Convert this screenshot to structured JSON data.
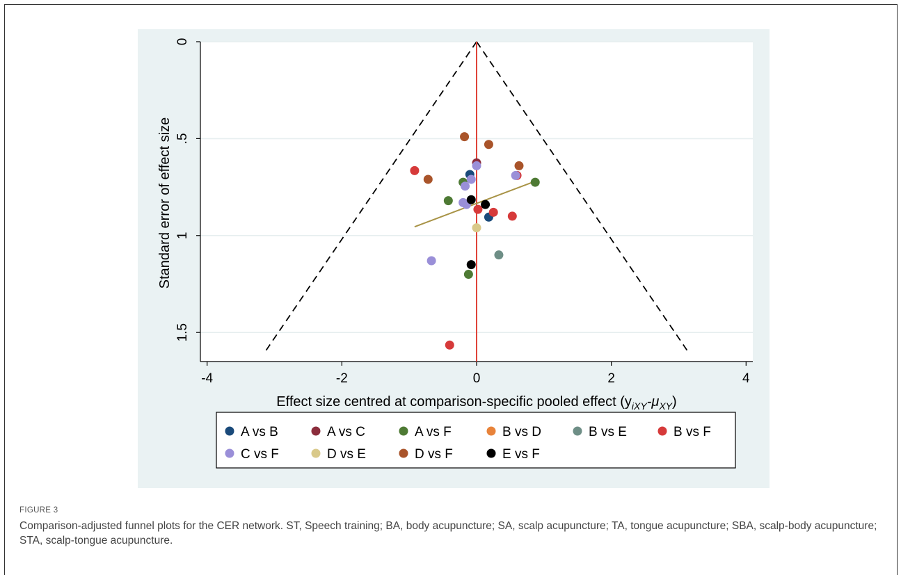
{
  "figure": {
    "label": "FIGURE 3",
    "caption": "Comparison-adjusted funnel plots for the CER network. ST, Speech training; BA, body acupuncture; SA, scalp acupuncture; TA, tongue acupuncture; SBA, scalp-body acupuncture; STA, scalp-tongue acupuncture."
  },
  "chart_data": {
    "type": "scatter",
    "title": "",
    "xlabel": "Effect size centred at comparison-specific pooled effect (y",
    "xlabel_sub1": "iXY",
    "xlabel_mid": "-μ",
    "xlabel_sub2": "XY",
    "xlabel_end": ")",
    "ylabel": "Standard error of effect size",
    "xlim": [
      -4.1,
      4.1
    ],
    "ylim": [
      0,
      1.65
    ],
    "y_reversed": true,
    "xticks": [
      -4,
      -2,
      0,
      2,
      4
    ],
    "xtick_labels": [
      "-4",
      "-2",
      "0",
      "2",
      "4"
    ],
    "yticks": [
      0,
      0.5,
      1,
      1.5
    ],
    "ytick_labels": [
      "0",
      ".5",
      "1",
      "1.5"
    ],
    "grid": true,
    "legend_position": "bottom",
    "funnel": {
      "apex": [
        0,
        0
      ],
      "left_base": [
        -3.14,
        1.6
      ],
      "right_base": [
        3.14,
        1.6
      ],
      "color": "#000000"
    },
    "null_line": {
      "x": 0,
      "color": "#e0443a"
    },
    "fit_line": {
      "x1": -0.92,
      "y1": 0.955,
      "x2": 0.87,
      "y2": 0.72,
      "color": "#a89346"
    },
    "series": [
      {
        "name": "A vs B",
        "color": "#1a4a7a",
        "points": [
          [
            -0.1,
            0.685
          ],
          [
            0.18,
            0.905
          ]
        ]
      },
      {
        "name": "A vs C",
        "color": "#8b2d3c",
        "points": [
          [
            0.0,
            0.625
          ]
        ]
      },
      {
        "name": "A vs F",
        "color": "#4e7a34",
        "points": [
          [
            -0.2,
            0.725
          ],
          [
            -0.42,
            0.82
          ],
          [
            0.87,
            0.725
          ],
          [
            -0.12,
            1.2
          ]
        ]
      },
      {
        "name": "B vs D",
        "color": "#e8833a",
        "points": []
      },
      {
        "name": "B vs E",
        "color": "#6e8e86",
        "points": [
          [
            0.33,
            1.1
          ]
        ]
      },
      {
        "name": "B vs F",
        "color": "#d63a3a",
        "points": [
          [
            -0.92,
            0.665
          ],
          [
            0.6,
            0.69
          ],
          [
            0.02,
            0.865
          ],
          [
            0.25,
            0.88
          ],
          [
            0.53,
            0.9
          ],
          [
            -0.4,
            1.565
          ]
        ]
      },
      {
        "name": "C vs F",
        "color": "#9a8fd8",
        "points": [
          [
            0.0,
            0.64
          ],
          [
            -0.08,
            0.71
          ],
          [
            -0.17,
            0.745
          ],
          [
            0.58,
            0.69
          ],
          [
            -0.2,
            0.83
          ],
          [
            -0.15,
            0.84
          ],
          [
            -0.67,
            1.13
          ]
        ]
      },
      {
        "name": "D vs E",
        "color": "#d9c98a",
        "points": [
          [
            0.0,
            0.96
          ]
        ]
      },
      {
        "name": "D vs F",
        "color": "#a9542a",
        "points": [
          [
            -0.18,
            0.49
          ],
          [
            0.18,
            0.53
          ],
          [
            0.63,
            0.64
          ],
          [
            -0.72,
            0.71
          ]
        ]
      },
      {
        "name": "E vs F",
        "color": "#000000",
        "points": [
          [
            -0.08,
            0.815
          ],
          [
            0.13,
            0.84
          ],
          [
            -0.08,
            1.15
          ]
        ]
      }
    ]
  }
}
